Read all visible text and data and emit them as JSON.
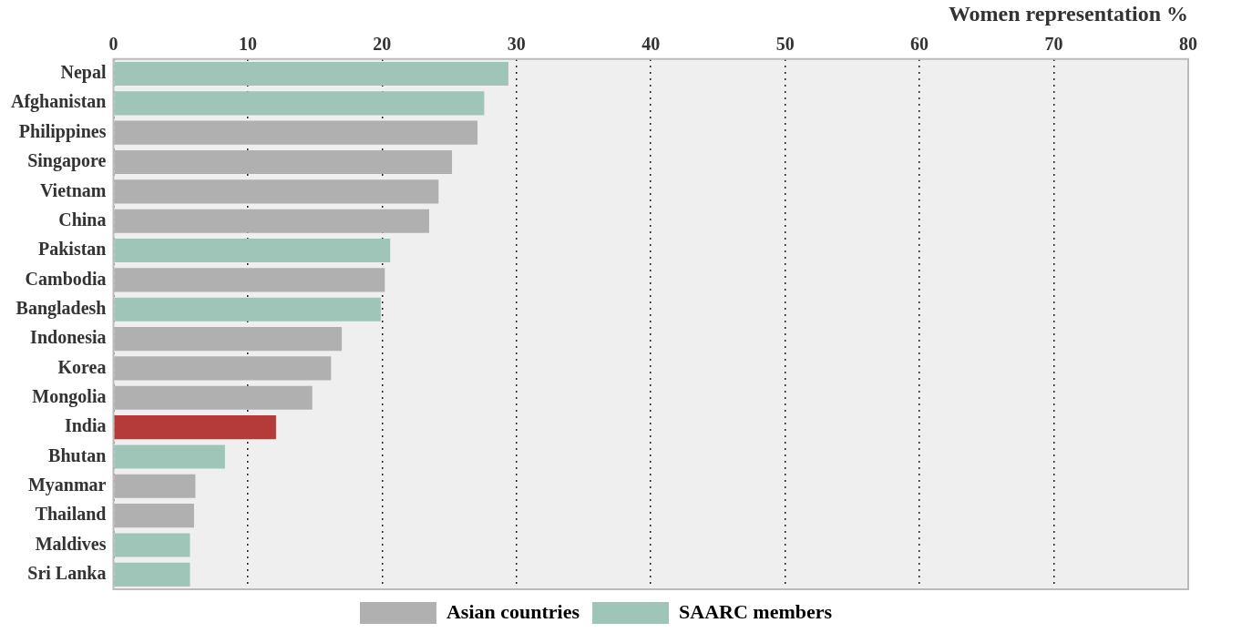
{
  "chart_data": {
    "type": "bar",
    "orientation": "horizontal",
    "stacked": true,
    "xlabel": "Women representation %",
    "categories": [
      "Nepal",
      "Afghanistan",
      "Philippines",
      "Singapore",
      "Vietnam",
      "China",
      "Pakistan",
      "Cambodia",
      "Bangladesh",
      "Indonesia",
      "Korea",
      "Mongolia",
      "India",
      "Bhutan",
      "Myanmar",
      "Thailand",
      "Maldives",
      "Sri Lanka"
    ],
    "series": [
      {
        "name": "Asian countries",
        "color": "#b0b0b0",
        "values": [
          null,
          null,
          27.1,
          25.2,
          24.2,
          23.5,
          null,
          20.2,
          null,
          17.0,
          16.2,
          14.8,
          null,
          null,
          6.1,
          6.0,
          null,
          null
        ]
      },
      {
        "name": "SAARC members",
        "color": "#9fc5b8",
        "colors": [
          "#9fc5b8",
          "#9fc5b8",
          "#9fc5b8",
          "#9fc5b8",
          "#9fc5b8",
          "#9fc5b8",
          "#9fc5b8",
          "#9fc5b8",
          "#9fc5b8",
          "#9fc5b8",
          "#9fc5b8",
          "#9fc5b8",
          "#b53a3a",
          "#9fc5b8",
          "#9fc5b8",
          "#9fc5b8",
          "#9fc5b8",
          "#9fc5b8"
        ],
        "values": [
          29.4,
          27.6,
          null,
          null,
          null,
          null,
          20.6,
          null,
          19.9,
          null,
          null,
          null,
          12.1,
          8.3,
          null,
          null,
          5.7,
          5.7
        ]
      }
    ],
    "xlim": [
      0,
      80
    ],
    "xticks": [
      0,
      10,
      20,
      30,
      40,
      50,
      60,
      70,
      80
    ],
    "grid": "x",
    "legend": "bottom"
  }
}
